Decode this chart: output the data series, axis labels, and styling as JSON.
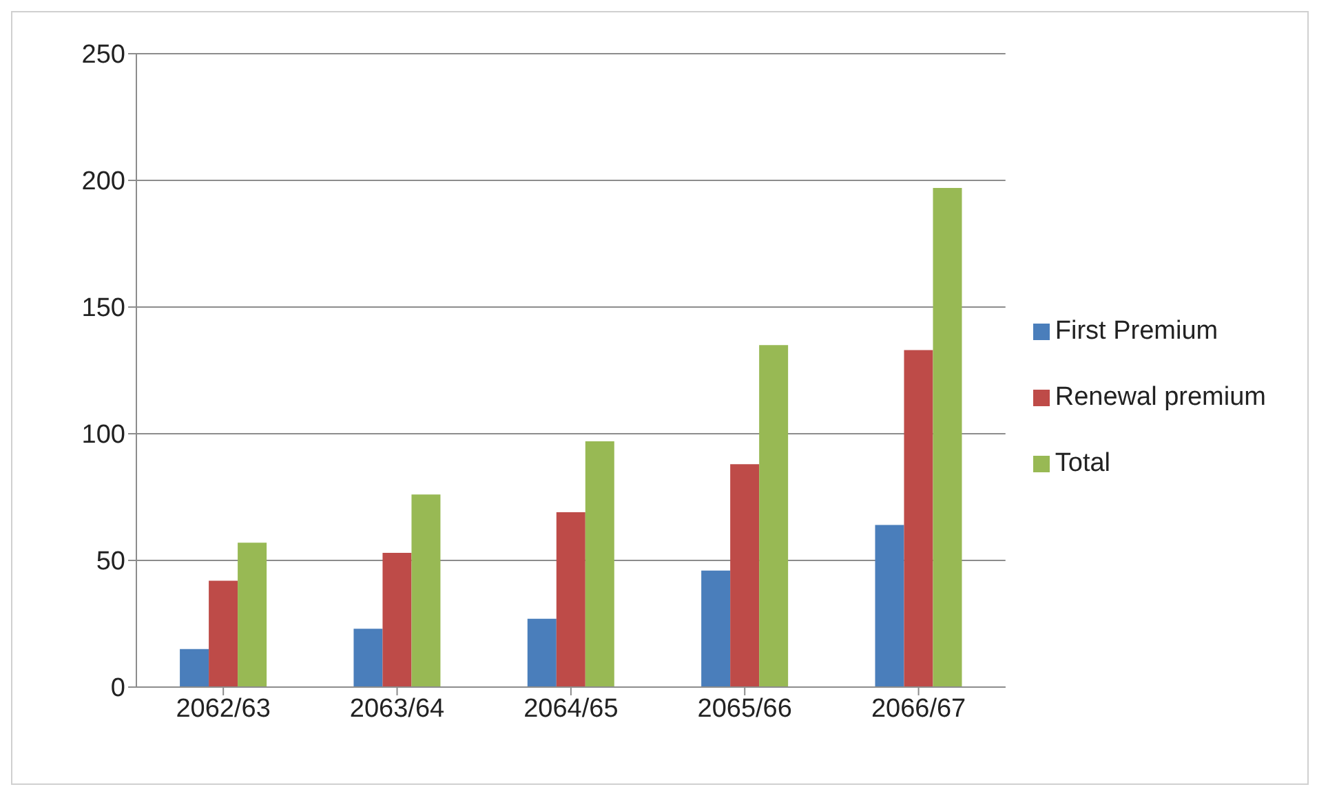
{
  "chart_data": {
    "type": "bar",
    "categories": [
      "2062/63",
      "2063/64",
      "2064/65",
      "2065/66",
      "2066/67"
    ],
    "series": [
      {
        "name": "First Premium",
        "color": "#4a7ebb",
        "values": [
          15,
          23,
          27,
          46,
          64
        ]
      },
      {
        "name": "Renewal premium",
        "color": "#be4b48",
        "values": [
          42,
          53,
          69,
          88,
          133
        ]
      },
      {
        "name": "Total",
        "color": "#98b954",
        "values": [
          57,
          76,
          97,
          135,
          197
        ]
      }
    ],
    "ylim": [
      0,
      250
    ],
    "yticks": [
      0,
      50,
      100,
      150,
      200,
      250
    ],
    "grid": "y",
    "legend": "right"
  }
}
